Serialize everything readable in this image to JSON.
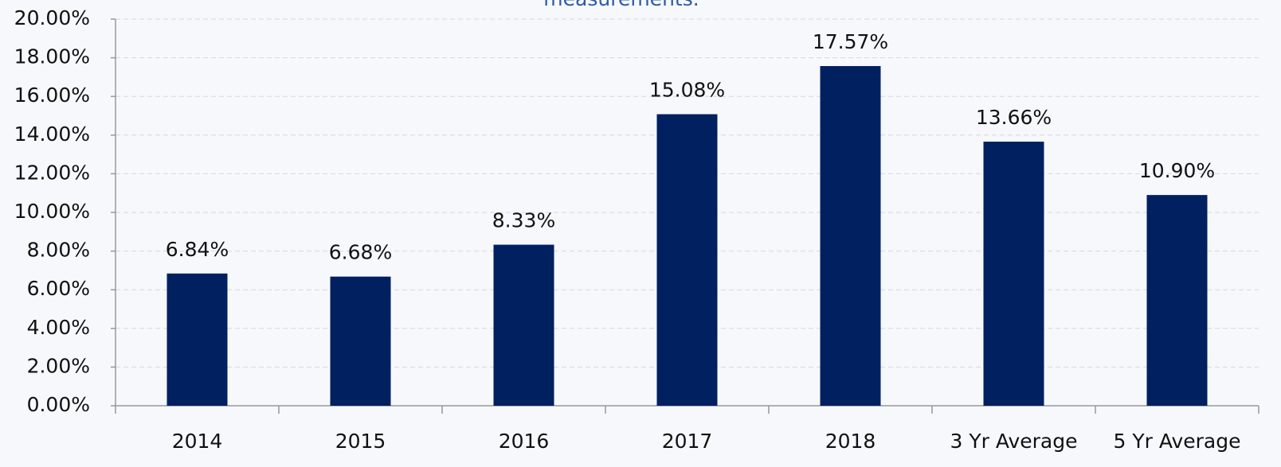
{
  "chart_data": {
    "type": "bar",
    "title": "measurements.",
    "categories": [
      "2014",
      "2015",
      "2016",
      "2017",
      "2018",
      "3 Yr Average",
      "5 Yr Average"
    ],
    "values": [
      6.84,
      6.68,
      8.33,
      15.08,
      17.57,
      13.66,
      10.9
    ],
    "value_labels": [
      "6.84%",
      "6.68%",
      "8.33%",
      "15.08%",
      "17.57%",
      "13.66%",
      "10.90%"
    ],
    "color": "#002060",
    "ylim": [
      0,
      20
    ],
    "yticks": [
      {
        "value": 0,
        "label": "0.00%"
      },
      {
        "value": 2,
        "label": "2.00%"
      },
      {
        "value": 4,
        "label": "4.00%"
      },
      {
        "value": 6,
        "label": "6.00%"
      },
      {
        "value": 8,
        "label": "8.00%"
      },
      {
        "value": 10,
        "label": "10.00%"
      },
      {
        "value": 12,
        "label": "12.00%"
      },
      {
        "value": 14,
        "label": "14.00%"
      },
      {
        "value": 16,
        "label": "16.00%"
      },
      {
        "value": 18,
        "label": "18.00%"
      },
      {
        "value": 20,
        "label": "20.00%"
      }
    ],
    "grid": true
  }
}
